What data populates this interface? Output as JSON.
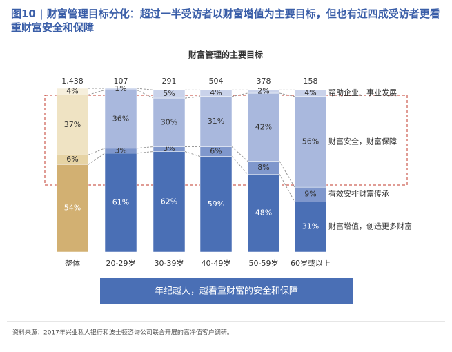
{
  "title": "图10 | 财富管理目标分化：超过一半受访者以财富增值为主要目标，但也有近四成受访者更看重财富安全和保障",
  "chart_data": {
    "type": "stacked_bar",
    "title": "财富管理的主要目标",
    "categories": [
      "整体",
      "20-29岁",
      "30-39岁",
      "40-49岁",
      "50-59岁",
      "60岁或以上"
    ],
    "sample_sizes": [
      "1,438",
      "107",
      "291",
      "504",
      "378",
      "158"
    ],
    "ylim": [
      0,
      101
    ],
    "series": [
      {
        "name": "财富增值，创造更多财富",
        "color": "#4a6fb5",
        "first_color": "#d2b072",
        "values": [
          54,
          61,
          62,
          59,
          48,
          31
        ],
        "value_labels": [
          "54%",
          "61%",
          "62%",
          "59%",
          "48%",
          "31%"
        ]
      },
      {
        "name": "有效安排财富传承",
        "color": "#7f97cc",
        "first_color": "#e6d3a4",
        "values": [
          6,
          3,
          3,
          6,
          8,
          9
        ],
        "value_labels": [
          "6%",
          "3%",
          "3%",
          "6%",
          "8%",
          "9%"
        ]
      },
      {
        "name": "财富安全，财富保障",
        "color": "#a9b8dd",
        "first_color": "#efe3c3",
        "values": [
          37,
          36,
          30,
          31,
          42,
          56
        ],
        "value_labels": [
          "37%",
          "36%",
          "30%",
          "31%",
          "42%",
          "56%"
        ]
      },
      {
        "name": "帮助企业、事业发展",
        "color": "#c9d2ea",
        "first_color": "#f6efdc",
        "values": [
          4,
          1,
          5,
          4,
          2,
          4
        ],
        "value_labels": [
          "4%",
          "1%",
          "5%",
          "4%",
          "2%",
          "4%"
        ]
      }
    ],
    "banner": "年纪越大，越看重财富的安全和保障"
  },
  "source": "资料来源：2017年兴业私人银行和波士顿咨询公司联合开展的高净值客户调研。"
}
